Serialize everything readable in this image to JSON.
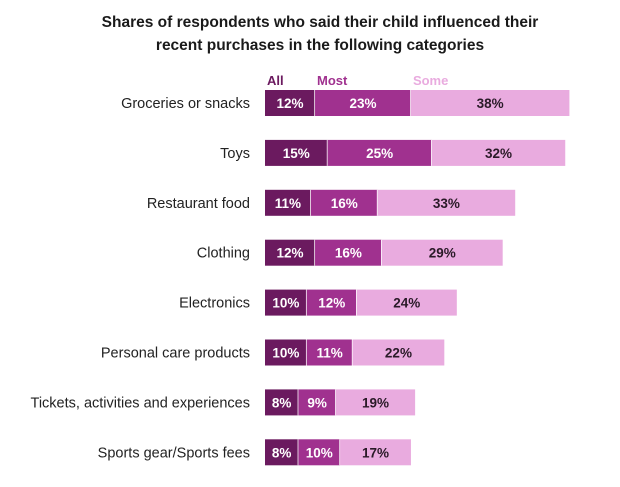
{
  "chart_data": {
    "type": "bar",
    "orientation": "horizontal",
    "stacked": true,
    "title_lines": [
      "Shares of respondents who said their child influenced their",
      "recent purchases in the following categories"
    ],
    "categories": [
      "Groceries or snacks",
      "Toys",
      "Restaurant food",
      "Clothing",
      "Electronics",
      "Personal care products",
      "Tickets, activities and experiences",
      "Sports gear/Sports fees"
    ],
    "series": [
      {
        "name": "All",
        "color": "#6b1a5f",
        "text_color": "#ffffff",
        "values": [
          12,
          15,
          11,
          12,
          10,
          10,
          8,
          8
        ]
      },
      {
        "name": "Most",
        "color": "#a0318f",
        "text_color": "#ffffff",
        "values": [
          23,
          25,
          16,
          16,
          12,
          11,
          9,
          10
        ]
      },
      {
        "name": "Some",
        "color": "#e9abdf",
        "text_color": "#2a1a28",
        "values": [
          38,
          32,
          33,
          29,
          24,
          22,
          19,
          17
        ]
      }
    ],
    "value_suffix": "%",
    "legend_position": "top",
    "grid": false
  }
}
